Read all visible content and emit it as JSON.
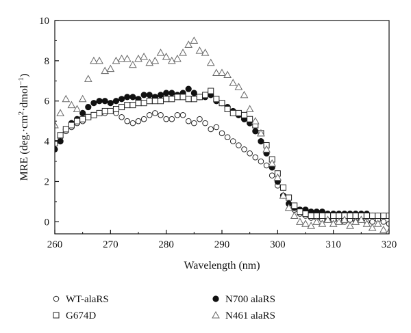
{
  "chart_data": {
    "type": "scatter",
    "xlabel": "Wavelength (nm)",
    "ylabel_main": "MRE (deg.·cm",
    "ylabel_sup2": "2",
    "ylabel_mid": "·dmol",
    "ylabel_sup1": "−1",
    "ylabel_end": ")",
    "xlim": [
      260,
      320
    ],
    "ylim": [
      -0.6,
      10
    ],
    "xticks": [
      "260",
      "270",
      "280",
      "290",
      "300",
      "310",
      "320"
    ],
    "yticks": [
      "0",
      "2",
      "4",
      "6",
      "8",
      "10"
    ],
    "grid": false,
    "legend_position": "bottom",
    "series": [
      {
        "name": "WT-alaRS",
        "marker": "circle-open",
        "points": [
          [
            260,
            3.9
          ],
          [
            261,
            4.2
          ],
          [
            262,
            4.5
          ],
          [
            263,
            4.7
          ],
          [
            264,
            4.9
          ],
          [
            265,
            5.0
          ],
          [
            266,
            5.2
          ],
          [
            267,
            5.3
          ],
          [
            268,
            5.4
          ],
          [
            269,
            5.4
          ],
          [
            270,
            5.5
          ],
          [
            271,
            5.4
          ],
          [
            272,
            5.2
          ],
          [
            273,
            5.0
          ],
          [
            274,
            4.9
          ],
          [
            275,
            5.0
          ],
          [
            276,
            5.1
          ],
          [
            277,
            5.3
          ],
          [
            278,
            5.4
          ],
          [
            279,
            5.3
          ],
          [
            280,
            5.1
          ],
          [
            281,
            5.1
          ],
          [
            282,
            5.3
          ],
          [
            283,
            5.3
          ],
          [
            284,
            5.0
          ],
          [
            285,
            4.9
          ],
          [
            286,
            5.1
          ],
          [
            287,
            4.9
          ],
          [
            288,
            4.6
          ],
          [
            289,
            4.7
          ],
          [
            290,
            4.4
          ],
          [
            291,
            4.2
          ],
          [
            292,
            4.0
          ],
          [
            293,
            3.8
          ],
          [
            294,
            3.6
          ],
          [
            295,
            3.4
          ],
          [
            296,
            3.2
          ],
          [
            297,
            3.0
          ],
          [
            298,
            2.8
          ],
          [
            299,
            2.3
          ],
          [
            300,
            1.8
          ],
          [
            301,
            1.3
          ],
          [
            302,
            0.9
          ],
          [
            303,
            0.6
          ],
          [
            304,
            0.4
          ],
          [
            305,
            0.3
          ],
          [
            306,
            0.2
          ],
          [
            307,
            0.2
          ],
          [
            308,
            0.1
          ],
          [
            309,
            0.1
          ],
          [
            310,
            0.1
          ],
          [
            311,
            0.1
          ],
          [
            312,
            0.0
          ],
          [
            313,
            0.1
          ],
          [
            314,
            0.0
          ],
          [
            315,
            0.1
          ],
          [
            316,
            0.0
          ],
          [
            317,
            0.0
          ],
          [
            318,
            0.1
          ],
          [
            319,
            0.0
          ],
          [
            320,
            -0.1
          ]
        ]
      },
      {
        "name": "G674D",
        "marker": "square-open",
        "points": [
          [
            260,
            3.9
          ],
          [
            261,
            4.3
          ],
          [
            262,
            4.6
          ],
          [
            263,
            4.8
          ],
          [
            264,
            5.0
          ],
          [
            265,
            5.1
          ],
          [
            266,
            5.2
          ],
          [
            267,
            5.3
          ],
          [
            268,
            5.4
          ],
          [
            269,
            5.5
          ],
          [
            270,
            5.5
          ],
          [
            271,
            5.6
          ],
          [
            272,
            5.7
          ],
          [
            273,
            5.8
          ],
          [
            274,
            5.8
          ],
          [
            275,
            5.9
          ],
          [
            276,
            5.9
          ],
          [
            277,
            6.0
          ],
          [
            278,
            6.0
          ],
          [
            279,
            6.0
          ],
          [
            280,
            6.1
          ],
          [
            281,
            6.1
          ],
          [
            282,
            6.2
          ],
          [
            283,
            6.2
          ],
          [
            284,
            6.1
          ],
          [
            285,
            6.1
          ],
          [
            286,
            6.2
          ],
          [
            287,
            6.3
          ],
          [
            288,
            6.5
          ],
          [
            289,
            6.1
          ],
          [
            290,
            5.9
          ],
          [
            291,
            5.6
          ],
          [
            292,
            5.4
          ],
          [
            293,
            5.4
          ],
          [
            294,
            5.3
          ],
          [
            295,
            5.1
          ],
          [
            296,
            4.8
          ],
          [
            297,
            4.4
          ],
          [
            298,
            3.8
          ],
          [
            299,
            3.1
          ],
          [
            300,
            2.4
          ],
          [
            301,
            1.7
          ],
          [
            302,
            1.2
          ],
          [
            303,
            0.8
          ],
          [
            304,
            0.5
          ],
          [
            305,
            0.4
          ],
          [
            306,
            0.3
          ],
          [
            307,
            0.3
          ],
          [
            308,
            0.3
          ],
          [
            309,
            0.3
          ],
          [
            310,
            0.3
          ],
          [
            311,
            0.3
          ],
          [
            312,
            0.3
          ],
          [
            313,
            0.3
          ],
          [
            314,
            0.3
          ],
          [
            315,
            0.3
          ],
          [
            316,
            0.3
          ],
          [
            317,
            0.3
          ],
          [
            318,
            0.3
          ],
          [
            319,
            0.3
          ],
          [
            320,
            0.3
          ]
        ]
      },
      {
        "name": "N700 alaRS",
        "marker": "circle-filled",
        "points": [
          [
            260,
            3.6
          ],
          [
            261,
            4.0
          ],
          [
            262,
            4.6
          ],
          [
            263,
            4.9
          ],
          [
            264,
            5.1
          ],
          [
            265,
            5.4
          ],
          [
            266,
            5.7
          ],
          [
            267,
            5.9
          ],
          [
            268,
            6.0
          ],
          [
            269,
            6.0
          ],
          [
            270,
            5.9
          ],
          [
            271,
            6.0
          ],
          [
            272,
            6.1
          ],
          [
            273,
            6.2
          ],
          [
            274,
            6.2
          ],
          [
            275,
            6.1
          ],
          [
            276,
            6.3
          ],
          [
            277,
            6.3
          ],
          [
            278,
            6.2
          ],
          [
            279,
            6.3
          ],
          [
            280,
            6.4
          ],
          [
            281,
            6.4
          ],
          [
            282,
            6.3
          ],
          [
            283,
            6.4
          ],
          [
            284,
            6.6
          ],
          [
            285,
            6.4
          ],
          [
            286,
            6.2
          ],
          [
            287,
            6.2
          ],
          [
            288,
            6.3
          ],
          [
            289,
            6.0
          ],
          [
            290,
            5.9
          ],
          [
            291,
            5.7
          ],
          [
            292,
            5.5
          ],
          [
            293,
            5.3
          ],
          [
            294,
            5.1
          ],
          [
            295,
            4.9
          ],
          [
            296,
            4.5
          ],
          [
            297,
            4.0
          ],
          [
            298,
            3.4
          ],
          [
            299,
            2.7
          ],
          [
            300,
            2.0
          ],
          [
            301,
            1.3
          ],
          [
            302,
            0.9
          ],
          [
            303,
            0.7
          ],
          [
            304,
            0.6
          ],
          [
            305,
            0.6
          ],
          [
            306,
            0.5
          ],
          [
            307,
            0.5
          ],
          [
            308,
            0.5
          ],
          [
            309,
            0.4
          ],
          [
            310,
            0.4
          ],
          [
            311,
            0.4
          ],
          [
            312,
            0.4
          ],
          [
            313,
            0.4
          ],
          [
            314,
            0.4
          ],
          [
            315,
            0.4
          ],
          [
            316,
            0.4
          ],
          [
            317,
            0.3
          ],
          [
            318,
            0.3
          ],
          [
            319,
            0.3
          ],
          [
            320,
            0.3
          ]
        ]
      },
      {
        "name": "N461 alaRS",
        "marker": "triangle-open",
        "points": [
          [
            260,
            4.8
          ],
          [
            261,
            5.4
          ],
          [
            262,
            6.1
          ],
          [
            263,
            5.8
          ],
          [
            264,
            5.6
          ],
          [
            265,
            6.1
          ],
          [
            266,
            7.1
          ],
          [
            267,
            8.0
          ],
          [
            268,
            8.0
          ],
          [
            269,
            7.5
          ],
          [
            270,
            7.6
          ],
          [
            271,
            8.0
          ],
          [
            272,
            8.1
          ],
          [
            273,
            8.1
          ],
          [
            274,
            7.8
          ],
          [
            275,
            8.1
          ],
          [
            276,
            8.2
          ],
          [
            277,
            7.9
          ],
          [
            278,
            8.0
          ],
          [
            279,
            8.4
          ],
          [
            280,
            8.2
          ],
          [
            281,
            8.0
          ],
          [
            282,
            8.1
          ],
          [
            283,
            8.4
          ],
          [
            284,
            8.8
          ],
          [
            285,
            9.0
          ],
          [
            286,
            8.5
          ],
          [
            287,
            8.4
          ],
          [
            288,
            7.9
          ],
          [
            289,
            7.4
          ],
          [
            290,
            7.4
          ],
          [
            291,
            7.3
          ],
          [
            292,
            6.9
          ],
          [
            293,
            6.7
          ],
          [
            294,
            6.3
          ],
          [
            295,
            5.6
          ],
          [
            296,
            5.0
          ],
          [
            297,
            4.4
          ],
          [
            298,
            3.6
          ],
          [
            299,
            2.9
          ],
          [
            300,
            2.2
          ],
          [
            301,
            1.3
          ],
          [
            302,
            0.7
          ],
          [
            303,
            0.3
          ],
          [
            304,
            0.0
          ],
          [
            305,
            -0.1
          ],
          [
            306,
            -0.2
          ],
          [
            307,
            0.0
          ],
          [
            308,
            -0.1
          ],
          [
            309,
            0.1
          ],
          [
            310,
            -0.1
          ],
          [
            311,
            0.0
          ],
          [
            312,
            0.1
          ],
          [
            313,
            -0.2
          ],
          [
            314,
            0.0
          ],
          [
            315,
            0.1
          ],
          [
            316,
            -0.1
          ],
          [
            317,
            -0.3
          ],
          [
            318,
            -0.1
          ],
          [
            319,
            -0.4
          ],
          [
            320,
            -0.5
          ]
        ]
      }
    ]
  }
}
